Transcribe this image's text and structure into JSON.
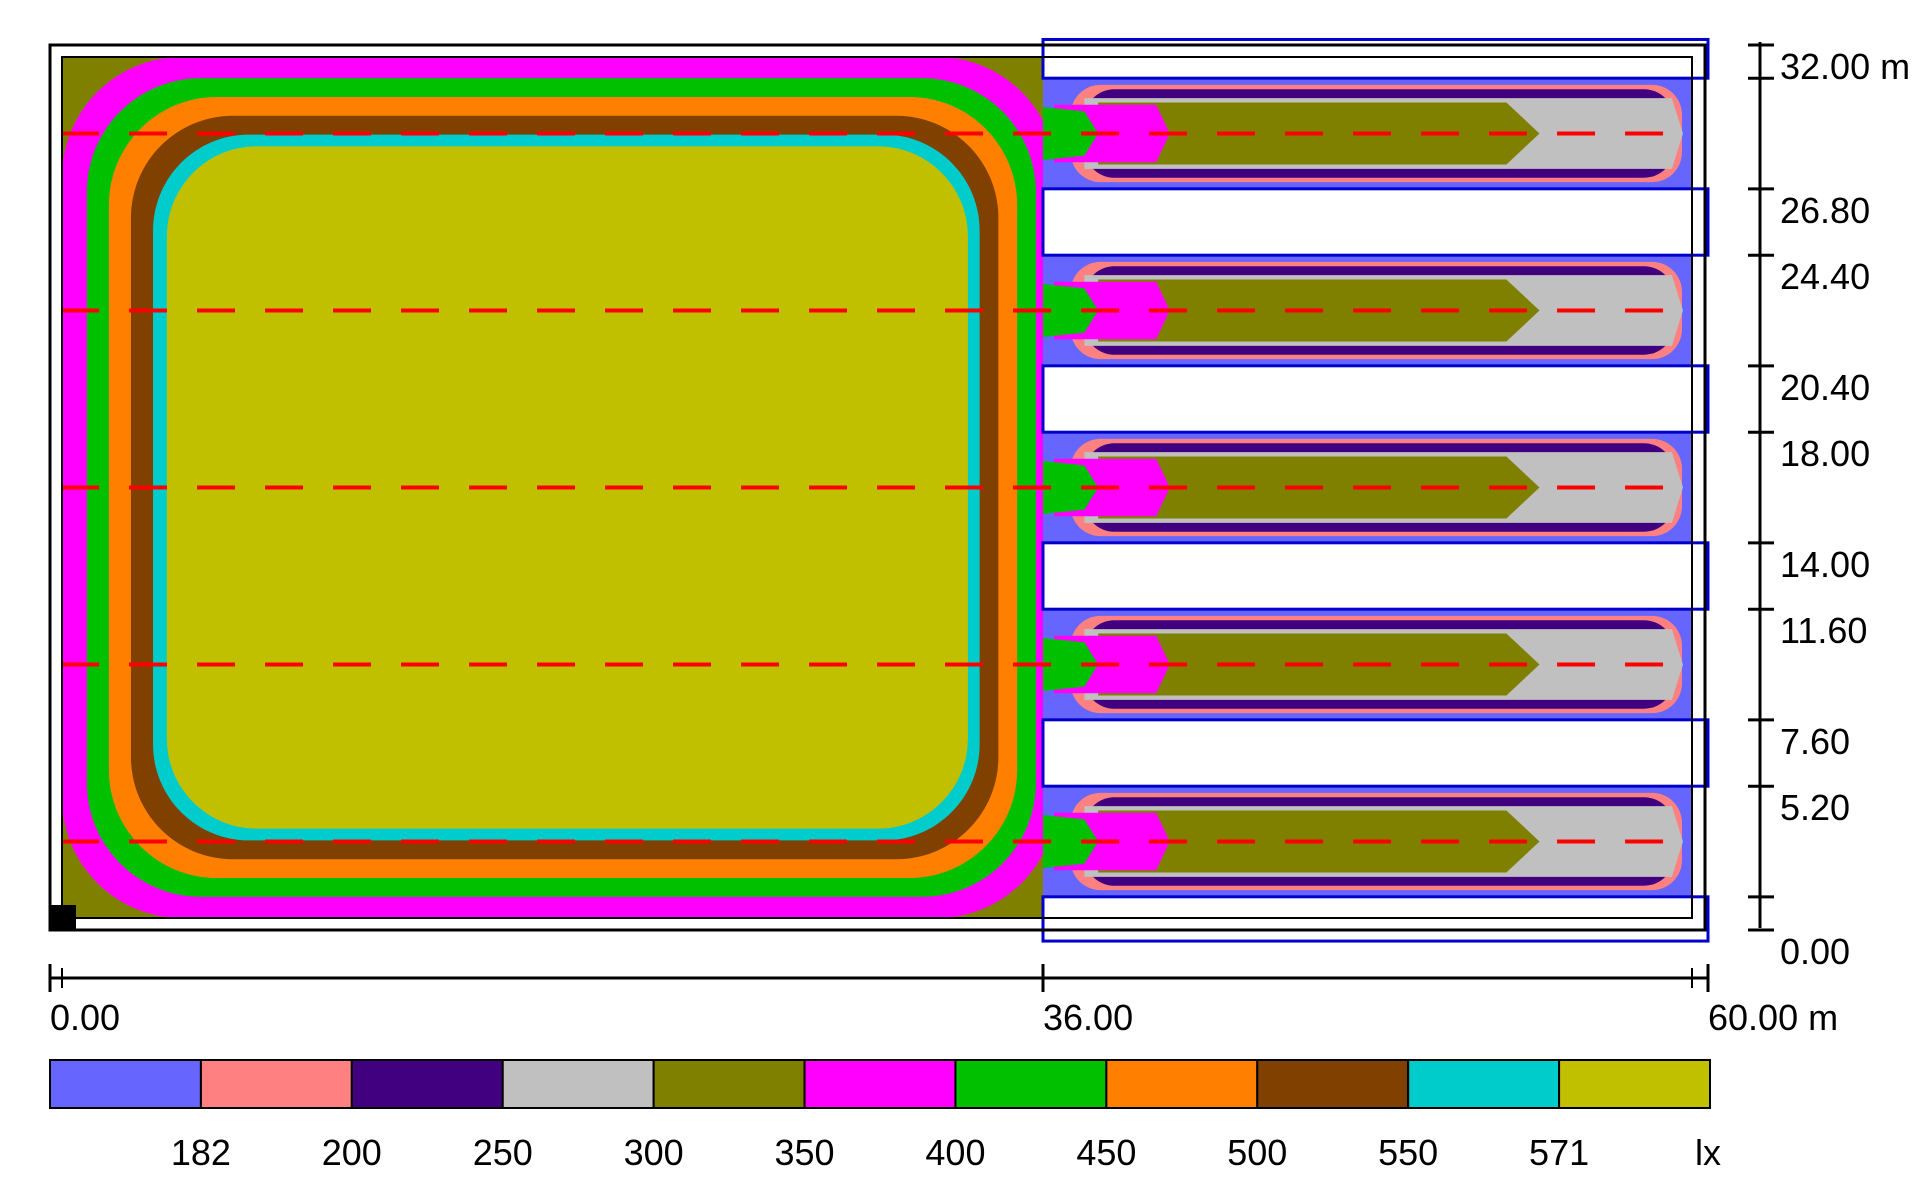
{
  "plan": {
    "x_extent_m": 60,
    "y_extent_m": 32,
    "x_marks": [
      {
        "value": 0,
        "label": "0.00"
      },
      {
        "value": 36,
        "label": "36.00"
      },
      {
        "value": 60,
        "label": "60.00 m"
      }
    ],
    "y_marks": [
      {
        "value": 0,
        "label": "0.00"
      },
      {
        "value": 1.2,
        "label": ""
      },
      {
        "value": 5.2,
        "label": "5.20"
      },
      {
        "value": 7.6,
        "label": "7.60"
      },
      {
        "value": 11.6,
        "label": "11.60"
      },
      {
        "value": 14.0,
        "label": "14.00"
      },
      {
        "value": 18.0,
        "label": "18.00"
      },
      {
        "value": 20.4,
        "label": "20.40"
      },
      {
        "value": 24.4,
        "label": "24.40"
      },
      {
        "value": 26.8,
        "label": "26.80"
      },
      {
        "value": 30.8,
        "label": ""
      },
      {
        "value": 32.0,
        "label": "32.00 m"
      }
    ],
    "obstacle_bands": [
      {
        "y0": -0.4,
        "y1": 1.2
      },
      {
        "y0": 5.2,
        "y1": 7.6
      },
      {
        "y0": 11.6,
        "y1": 14.0
      },
      {
        "y0": 18.0,
        "y1": 20.4
      },
      {
        "y0": 24.4,
        "y1": 26.8
      },
      {
        "y0": 30.8,
        "y1": 32.2
      }
    ],
    "luminaire_rows_y_m": [
      3.2,
      9.6,
      16.0,
      22.4,
      28.8
    ]
  },
  "legend": {
    "unit": "lx",
    "colors": [
      "#6666ff",
      "#ff8080",
      "#400080",
      "#c0c0c0",
      "#808000",
      "#ff00ff",
      "#00c000",
      "#ff8000",
      "#804000",
      "#00cccc",
      "#c0c000"
    ],
    "thresholds": [
      "182",
      "200",
      "250",
      "300",
      "350",
      "400",
      "450",
      "500",
      "550",
      "571"
    ]
  }
}
